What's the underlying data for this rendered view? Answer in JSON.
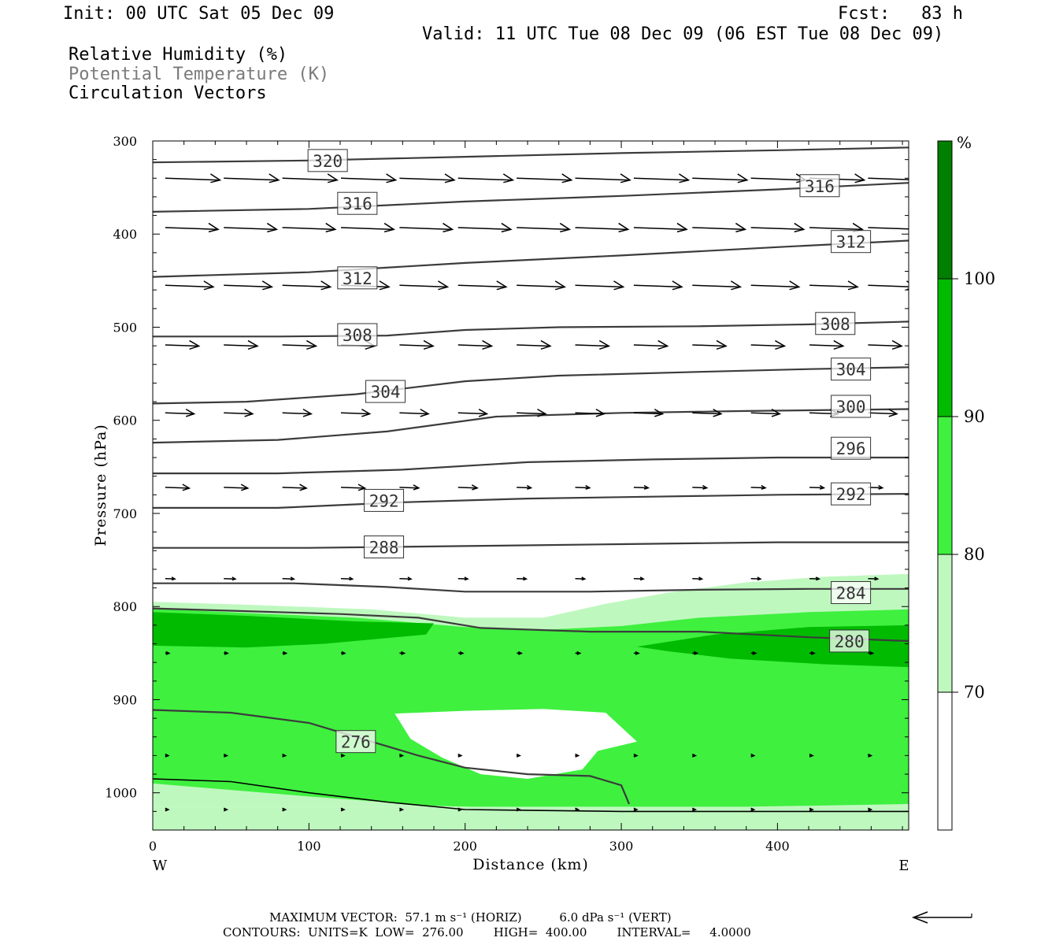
{
  "header": {
    "init": "Init: 00 UTC Sat 05 Dec 09",
    "fcst": "Fcst:   83 h",
    "valid": "Valid: 11 UTC Tue 08 Dec 09 (06 EST Tue 08 Dec 09)",
    "fields": [
      "Relative Humidity (%)",
      "Potential Temperature (K)",
      "Circulation Vectors"
    ]
  },
  "footer": {
    "line1": "MAXIMUM VECTOR:  57.1 m s⁻¹ (HORIZ)          6.0 dPa s⁻¹ (VERT)",
    "line2": "CONTOURS:  UNITS=K  LOW=  276.00        HIGH=  400.00        INTERVAL=     4.0000"
  },
  "colors": {
    "rh70": "#bff8bf",
    "rh80": "#3ff03f",
    "rh90": "#00bb00",
    "rh100": "#007f00",
    "contour": "#3c3c3c",
    "vector": "#000000",
    "frame": "#000000"
  },
  "chart_data": {
    "type": "contour",
    "xlabel": "Distance (km)",
    "ylabel": "Pressure (hPa)",
    "xlim": [
      0,
      484
    ],
    "ylim": [
      1040,
      300
    ],
    "y_reversed": true,
    "xticks": [
      0,
      100,
      200,
      300,
      400
    ],
    "yticks": [
      300,
      400,
      500,
      600,
      700,
      800,
      900,
      1000
    ],
    "x_endpoints": {
      "left": "W",
      "right": "E"
    },
    "colorbar": {
      "unit": "%",
      "levels": [
        70,
        80,
        90,
        100
      ],
      "colors": [
        "#ffffff",
        "#bff8bf",
        "#3ff03f",
        "#00bb00",
        "#007f00"
      ]
    },
    "rh_regions": [
      {
        "level": 70,
        "polygon": [
          [
            0,
            795
          ],
          [
            60,
            798
          ],
          [
            140,
            803
          ],
          [
            200,
            812
          ],
          [
            250,
            812
          ],
          [
            290,
            797
          ],
          [
            330,
            785
          ],
          [
            380,
            774
          ],
          [
            430,
            768
          ],
          [
            484,
            765
          ],
          [
            484,
            1015
          ],
          [
            0,
            1015
          ]
        ]
      },
      {
        "level": 80,
        "polygon": [
          [
            0,
            802
          ],
          [
            60,
            807
          ],
          [
            130,
            812
          ],
          [
            200,
            822
          ],
          [
            250,
            825
          ],
          [
            300,
            821
          ],
          [
            350,
            812
          ],
          [
            420,
            806
          ],
          [
            484,
            803
          ],
          [
            484,
            1012
          ],
          [
            280,
            1018
          ],
          [
            180,
            1014
          ],
          [
            100,
            1004
          ],
          [
            0,
            990
          ]
        ]
      },
      {
        "level": 80,
        "polygon": [
          [
            0,
            893
          ],
          [
            60,
            903
          ],
          [
            120,
            920
          ],
          [
            145,
            945
          ],
          [
            120,
            972
          ],
          [
            100,
            990
          ],
          [
            50,
            982
          ],
          [
            0,
            978
          ]
        ]
      },
      {
        "level": 90,
        "polygon": [
          [
            0,
            806
          ],
          [
            60,
            810
          ],
          [
            130,
            816
          ],
          [
            180,
            818
          ],
          [
            175,
            830
          ],
          [
            110,
            840
          ],
          [
            60,
            844
          ],
          [
            0,
            842
          ]
        ]
      },
      {
        "level": 90,
        "polygon": [
          [
            310,
            843
          ],
          [
            360,
            830
          ],
          [
            420,
            822
          ],
          [
            484,
            820
          ],
          [
            484,
            865
          ],
          [
            430,
            862
          ],
          [
            370,
            856
          ],
          [
            330,
            848
          ]
        ]
      }
    ],
    "rh_clear": [
      {
        "level": 70,
        "polygon": [
          [
            0,
            1015
          ],
          [
            484,
            1015
          ],
          [
            484,
            1040
          ],
          [
            0,
            1040
          ]
        ]
      },
      {
        "level": 0,
        "polygon": [
          [
            155,
            915
          ],
          [
            200,
            912
          ],
          [
            250,
            910
          ],
          [
            290,
            914
          ],
          [
            310,
            945
          ],
          [
            285,
            955
          ],
          [
            275,
            975
          ],
          [
            240,
            985
          ],
          [
            210,
            980
          ],
          [
            185,
            962
          ],
          [
            165,
            942
          ]
        ]
      }
    ],
    "theta_contours": [
      {
        "level": 276,
        "label_at": [
          130,
          945
        ],
        "points": [
          [
            0,
            911
          ],
          [
            50,
            914
          ],
          [
            100,
            925
          ],
          [
            130,
            940
          ],
          [
            170,
            960
          ],
          [
            200,
            973
          ],
          [
            240,
            980
          ],
          [
            280,
            982
          ],
          [
            300,
            992
          ],
          [
            305,
            1012
          ]
        ]
      },
      {
        "level": 280,
        "label_at": [
          446,
          837
        ],
        "points": [
          [
            0,
            802
          ],
          [
            60,
            805
          ],
          [
            120,
            808
          ],
          [
            170,
            812
          ],
          [
            210,
            823
          ],
          [
            280,
            827
          ],
          [
            350,
            827
          ],
          [
            420,
            833
          ],
          [
            484,
            837
          ]
        ]
      },
      {
        "level": 284,
        "label_at": [
          447,
          785
        ],
        "points": [
          [
            0,
            775
          ],
          [
            90,
            775
          ],
          [
            150,
            779
          ],
          [
            200,
            784
          ],
          [
            280,
            784
          ],
          [
            350,
            782
          ],
          [
            420,
            781
          ],
          [
            484,
            781
          ]
        ]
      },
      {
        "level": 288,
        "label_at": [
          148,
          736
        ],
        "points": [
          [
            0,
            737
          ],
          [
            100,
            737
          ],
          [
            200,
            735
          ],
          [
            300,
            733
          ],
          [
            400,
            731
          ],
          [
            484,
            731
          ]
        ]
      },
      {
        "level": 292,
        "label_at": [
          148,
          686
        ],
        "label_at2": [
          447,
          679
        ],
        "points": [
          [
            0,
            694
          ],
          [
            80,
            694
          ],
          [
            160,
            688
          ],
          [
            240,
            684
          ],
          [
            320,
            682
          ],
          [
            400,
            680
          ],
          [
            484,
            679
          ]
        ]
      },
      {
        "level": 296,
        "label_at": [
          447,
          630
        ],
        "points": [
          [
            0,
            657
          ],
          [
            80,
            657
          ],
          [
            160,
            653
          ],
          [
            240,
            645
          ],
          [
            320,
            642
          ],
          [
            400,
            640
          ],
          [
            484,
            640
          ]
        ]
      },
      {
        "level": 300,
        "label_at": [
          447,
          585
        ],
        "points": [
          [
            0,
            624
          ],
          [
            80,
            621
          ],
          [
            150,
            612
          ],
          [
            220,
            596
          ],
          [
            300,
            592
          ],
          [
            380,
            590
          ],
          [
            484,
            588
          ]
        ]
      },
      {
        "level": 304,
        "label_at": [
          149,
          569
        ],
        "label_at2": [
          447,
          545
        ],
        "points": [
          [
            0,
            582
          ],
          [
            60,
            580
          ],
          [
            130,
            572
          ],
          [
            200,
            558
          ],
          [
            260,
            552
          ],
          [
            350,
            548
          ],
          [
            420,
            545
          ],
          [
            484,
            543
          ]
        ]
      },
      {
        "level": 308,
        "label_at": [
          131,
          508
        ],
        "label_at2": [
          437,
          496
        ],
        "points": [
          [
            0,
            510
          ],
          [
            80,
            510
          ],
          [
            150,
            509
          ],
          [
            200,
            503
          ],
          [
            260,
            500
          ],
          [
            350,
            499
          ],
          [
            420,
            497
          ],
          [
            484,
            494
          ]
        ]
      },
      {
        "level": 312,
        "label_at": [
          131,
          447
        ],
        "label_at2": [
          447,
          408
        ],
        "points": [
          [
            0,
            446
          ],
          [
            100,
            441
          ],
          [
            200,
            431
          ],
          [
            300,
            423
          ],
          [
            400,
            414
          ],
          [
            484,
            407
          ]
        ]
      },
      {
        "level": 316,
        "label_at": [
          131,
          367
        ],
        "label_at2": [
          427,
          348
        ],
        "points": [
          [
            0,
            376
          ],
          [
            100,
            373
          ],
          [
            200,
            365
          ],
          [
            300,
            359
          ],
          [
            400,
            352
          ],
          [
            484,
            345
          ]
        ]
      },
      {
        "level": 320,
        "label_at": [
          112,
          321
        ],
        "points": [
          [
            0,
            323
          ],
          [
            100,
            321
          ],
          [
            200,
            317
          ],
          [
            300,
            313
          ],
          [
            400,
            310
          ],
          [
            484,
            307
          ]
        ]
      }
    ],
    "vectors": {
      "x_start": 8,
      "x_step": 37.5,
      "note": "u in m/s",
      "rows": [
        {
          "p": 340,
          "u": [
            57,
            57,
            57,
            57,
            57,
            57,
            57,
            57,
            57,
            57,
            57,
            57,
            57
          ]
        },
        {
          "p": 393,
          "u": [
            55,
            55,
            55,
            55,
            55,
            55,
            55,
            55,
            55,
            55,
            55,
            55,
            55
          ]
        },
        {
          "p": 455,
          "u": [
            50,
            50,
            50,
            50,
            50,
            50,
            50,
            50,
            50,
            50,
            50,
            50,
            50
          ]
        },
        {
          "p": 519,
          "u": [
            35,
            35,
            35,
            35,
            35,
            35,
            35,
            35,
            35,
            35,
            35,
            35,
            35
          ]
        },
        {
          "p": 592,
          "u": [
            30,
            30,
            30,
            30,
            30,
            30,
            30,
            30,
            30,
            30,
            30,
            30,
            30
          ]
        },
        {
          "p": 672,
          "u": [
            25,
            25,
            25,
            25,
            20,
            20,
            15,
            15,
            15,
            15,
            15,
            15,
            15
          ]
        },
        {
          "p": 770,
          "u": [
            10,
            12,
            12,
            12,
            12,
            10,
            10,
            10,
            10,
            10,
            10,
            10,
            10
          ]
        },
        {
          "p": 850,
          "u": [
            4,
            4,
            4,
            4,
            5,
            5,
            5,
            5,
            5,
            5,
            5,
            5,
            5
          ]
        },
        {
          "p": 960,
          "u": [
            3,
            3,
            3,
            3,
            3,
            3,
            3,
            3,
            3,
            3,
            3,
            3,
            3
          ]
        },
        {
          "p": 1018,
          "u": [
            2,
            2,
            2,
            2,
            2,
            2,
            2,
            2,
            2,
            2,
            2,
            2,
            2
          ]
        }
      ]
    },
    "ground_line": [
      [
        0,
        985
      ],
      [
        50,
        988
      ],
      [
        100,
        1000
      ],
      [
        150,
        1010
      ],
      [
        200,
        1018
      ],
      [
        300,
        1020
      ],
      [
        484,
        1020
      ]
    ],
    "reference_vector_direction": "left"
  }
}
